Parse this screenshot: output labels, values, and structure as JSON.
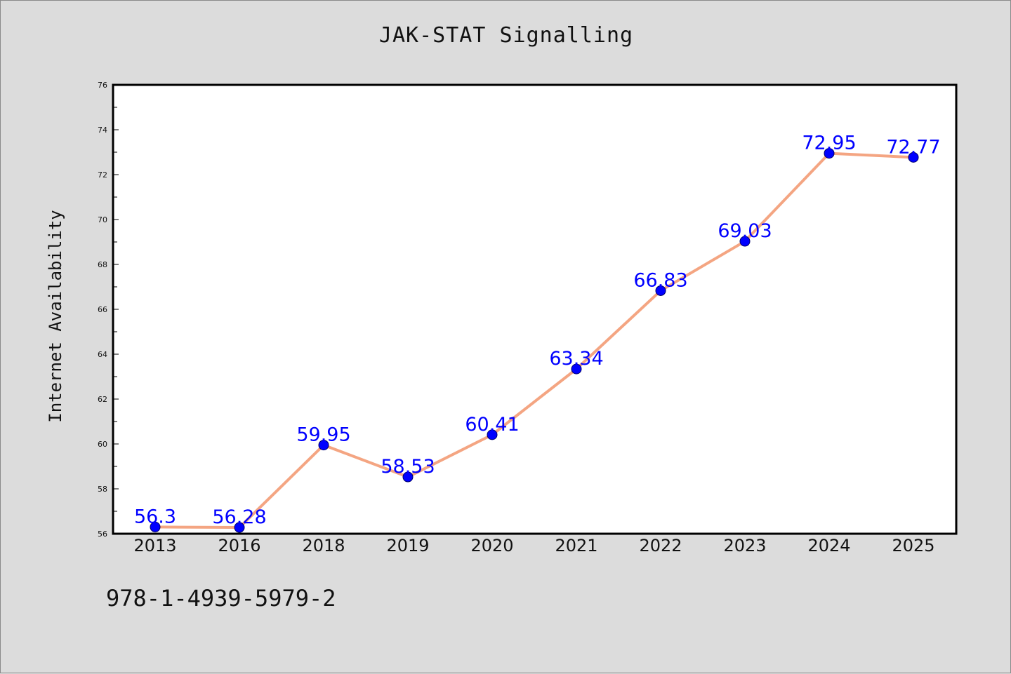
{
  "chart_data": {
    "type": "line",
    "title": "JAK-STAT Signalling",
    "xlabel": "",
    "ylabel": "Internet Availability",
    "categories": [
      "2013",
      "2016",
      "2018",
      "2019",
      "2020",
      "2021",
      "2022",
      "2023",
      "2024",
      "2025"
    ],
    "series": [
      {
        "values": [
          56.3,
          56.28,
          59.95,
          58.53,
          60.41,
          63.34,
          66.83,
          69.03,
          72.95,
          72.77
        ],
        "value_labels": [
          "56.3",
          "56.28",
          "59.95",
          "58.53",
          "60.41",
          "63.34",
          "66.83",
          "69.03",
          "72.95",
          "72.77"
        ]
      }
    ],
    "ylim": [
      56,
      76
    ],
    "yticks": [
      56,
      58,
      60,
      62,
      64,
      66,
      68,
      70,
      72,
      74,
      76
    ],
    "grid": false,
    "colors": {
      "line": "#f4a582",
      "marker": "#0000ff",
      "label": "#0000ff",
      "plot_bg": "#ffffff",
      "page_bg": "#dcdcdc"
    }
  },
  "footer": {
    "isbn": "978-1-4939-5979-2"
  }
}
